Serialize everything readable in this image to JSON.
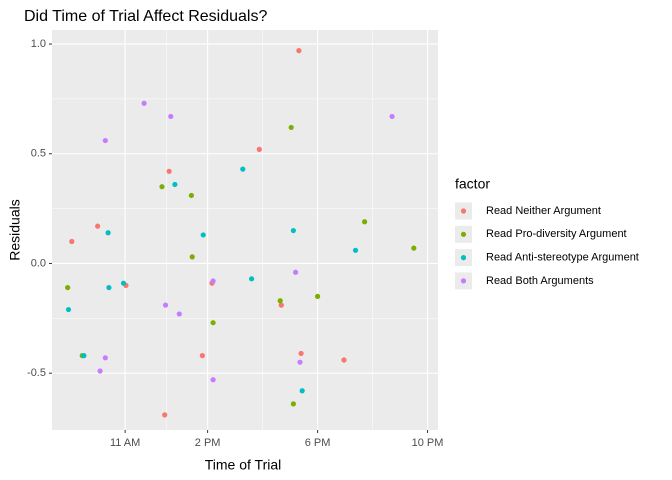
{
  "chart_data": {
    "type": "scatter",
    "title": "Did Time of Trial Affect Residuals?",
    "x_label": "Time of Trial",
    "y_label": "Residuals",
    "legend_title": "factor",
    "legend": "right",
    "grid": true,
    "xlim": [
      8.34,
      22.38
    ],
    "ylim": [
      -0.759,
      1.064
    ],
    "xticks": [
      {
        "value": 11,
        "label": "11 AM"
      },
      {
        "value": 14,
        "label": "2 PM"
      },
      {
        "value": 18,
        "label": "6 PM"
      },
      {
        "value": 22,
        "label": "10 PM"
      }
    ],
    "yticks": [
      -0.5,
      {
        "value": 0,
        "label": "0.0"
      },
      0.5,
      {
        "value": 1,
        "label": "1.0"
      }
    ],
    "series": [
      {
        "name": "Read Neither Argument",
        "color": "#F8766D",
        "x": [
          9.06,
          10.0,
          11.03,
          12.6,
          12.44,
          13.81,
          14.16,
          15.88,
          16.68,
          17.32,
          17.4,
          18.96
        ],
        "values": [
          0.1,
          0.17,
          -0.1,
          0.42,
          -0.69,
          -0.42,
          -0.09,
          0.52,
          -0.19,
          0.97,
          -0.41,
          -0.44
        ]
      },
      {
        "name": "Read Pro-diversity Argument",
        "color": "#7CAE00",
        "x": [
          8.91,
          9.44,
          12.34,
          13.41,
          13.44,
          14.2,
          16.64,
          17.04,
          17.12,
          18.0,
          19.71,
          21.5
        ],
        "values": [
          -0.11,
          -0.42,
          0.35,
          0.31,
          0.03,
          -0.27,
          -0.17,
          0.62,
          -0.64,
          -0.15,
          0.19,
          0.07
        ]
      },
      {
        "name": "Read Anti-stereotype Argument",
        "color": "#00BFC4",
        "x": [
          8.94,
          9.5,
          10.38,
          10.41,
          10.94,
          12.81,
          13.84,
          15.28,
          15.6,
          17.12,
          17.44,
          19.38
        ],
        "values": [
          -0.21,
          -0.42,
          0.14,
          -0.11,
          -0.09,
          0.36,
          0.13,
          0.43,
          -0.07,
          0.15,
          -0.58,
          0.06
        ]
      },
      {
        "name": "Read Both Arguments",
        "color": "#C77CFF",
        "x": [
          10.09,
          10.28,
          10.28,
          11.69,
          12.47,
          12.66,
          12.97,
          14.2,
          14.2,
          17.2,
          17.36,
          20.71
        ],
        "values": [
          -0.49,
          0.56,
          -0.43,
          0.73,
          -0.19,
          0.67,
          -0.23,
          -0.08,
          -0.53,
          -0.04,
          -0.45,
          0.67
        ]
      }
    ]
  }
}
